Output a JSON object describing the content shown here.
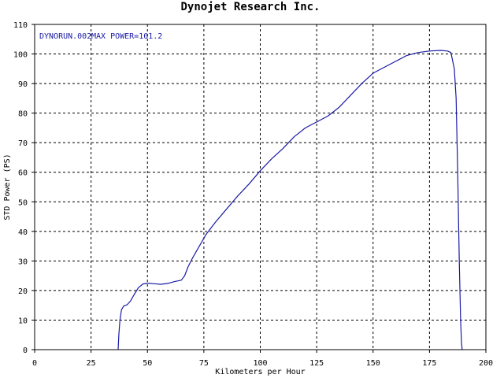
{
  "chart_data": {
    "type": "line",
    "title": "Dynojet Research Inc.",
    "xlabel": "Kilometers per Hour",
    "ylabel": "STD Power (PS)",
    "xlim": [
      0,
      200
    ],
    "ylim": [
      0,
      110
    ],
    "xticks": [
      0,
      25,
      50,
      75,
      100,
      125,
      150,
      175,
      200
    ],
    "yticks": [
      0,
      10,
      20,
      30,
      40,
      50,
      60,
      70,
      80,
      90,
      100,
      110
    ],
    "grid": true,
    "annotations": {
      "run": "DYNORUN.002",
      "max_power": "MAX POWER=101.2"
    },
    "series": [
      {
        "color": "#1a1aa6",
        "x": [
          37,
          37.3,
          37.8,
          38.5,
          39.5,
          41,
          42.5,
          44,
          46,
          48,
          50,
          53,
          56,
          59,
          62,
          65,
          66.5,
          68,
          70,
          73,
          76,
          80,
          85,
          90,
          95,
          100,
          105,
          110,
          115,
          120,
          125,
          130,
          135,
          140,
          145,
          150,
          155,
          160,
          165,
          170,
          175,
          180,
          183,
          184.5,
          186,
          186.8,
          187.5,
          188.2,
          188.8,
          189.2,
          189.5
        ],
        "y": [
          0,
          5,
          10,
          13.5,
          14.8,
          15.2,
          16.5,
          18.5,
          21,
          22.2,
          22.5,
          22.3,
          22.1,
          22.4,
          23,
          23.5,
          25,
          28,
          31,
          35,
          39,
          43,
          47.5,
          52,
          56,
          60.5,
          64.5,
          68,
          72,
          75,
          77,
          79,
          82,
          86,
          90,
          93.5,
          95.5,
          97.5,
          99.5,
          100.5,
          101,
          101.2,
          101,
          100.5,
          95,
          85,
          60,
          30,
          10,
          2,
          0
        ]
      }
    ]
  }
}
